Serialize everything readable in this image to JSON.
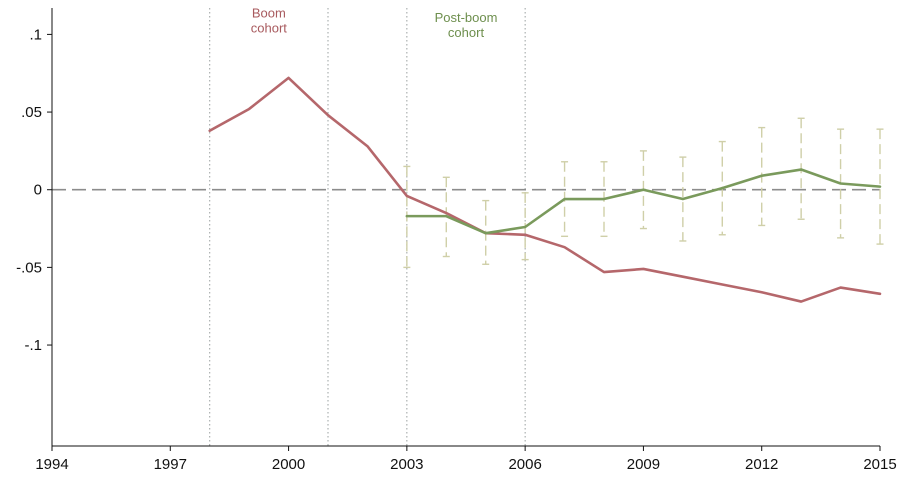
{
  "chart_data": {
    "type": "line",
    "title": "",
    "xlabel": "",
    "ylabel": "",
    "xlim": [
      1994,
      2015
    ],
    "ylim": [
      -0.165,
      0.117
    ],
    "x_ticks": [
      1994,
      1997,
      2000,
      2003,
      2006,
      2009,
      2012,
      2015
    ],
    "x_tick_labels": [
      "1994",
      "1997",
      "2000",
      "2003",
      "2006",
      "2009",
      "2012",
      "2015"
    ],
    "y_ticks": [
      0.1,
      0.05,
      0,
      -0.05,
      -0.1
    ],
    "y_tick_labels": [
      ".1",
      ".05",
      "0",
      "-.05",
      "-.1"
    ],
    "grid": false,
    "reference_line_y": 0,
    "vertical_markers_x": [
      1998,
      2001,
      2003,
      2006
    ],
    "annotations": [
      {
        "lines": [
          "Boom",
          "cohort"
        ],
        "x": 1999.5,
        "y": 0.111,
        "color": "#a85a5e"
      },
      {
        "lines": [
          "Post-boom",
          "cohort"
        ],
        "x": 2004.5,
        "y": 0.108,
        "color": "#6e8f4e"
      }
    ],
    "series": [
      {
        "color": "#b5676b",
        "x": [
          1998,
          1999,
          2000,
          2001,
          2002,
          2003,
          2004,
          2005,
          2006,
          2007,
          2008,
          2009,
          2010,
          2011,
          2012,
          2013,
          2014,
          2015
        ],
        "values": [
          0.038,
          0.052,
          0.072,
          0.048,
          0.028,
          -0.004,
          -0.015,
          -0.028,
          -0.029,
          -0.037,
          -0.053,
          -0.051,
          -0.056,
          -0.061,
          -0.066,
          -0.072,
          -0.063,
          -0.067
        ]
      },
      {
        "color": "#7a9a5c",
        "x": [
          2003,
          2004,
          2005,
          2006,
          2007,
          2008,
          2009,
          2010,
          2011,
          2012,
          2013,
          2014,
          2015
        ],
        "values": [
          -0.017,
          -0.017,
          -0.028,
          -0.024,
          -0.006,
          -0.006,
          0.0,
          -0.006,
          0.001,
          0.009,
          0.013,
          0.004,
          0.002
        ],
        "ci_low": [
          -0.05,
          -0.043,
          -0.048,
          -0.045,
          -0.03,
          -0.03,
          -0.025,
          -0.033,
          -0.029,
          -0.023,
          -0.019,
          -0.031,
          -0.035
        ],
        "ci_high": [
          0.015,
          0.008,
          -0.007,
          -0.002,
          0.018,
          0.018,
          0.025,
          0.021,
          0.031,
          0.04,
          0.046,
          0.039,
          0.039
        ]
      }
    ]
  }
}
